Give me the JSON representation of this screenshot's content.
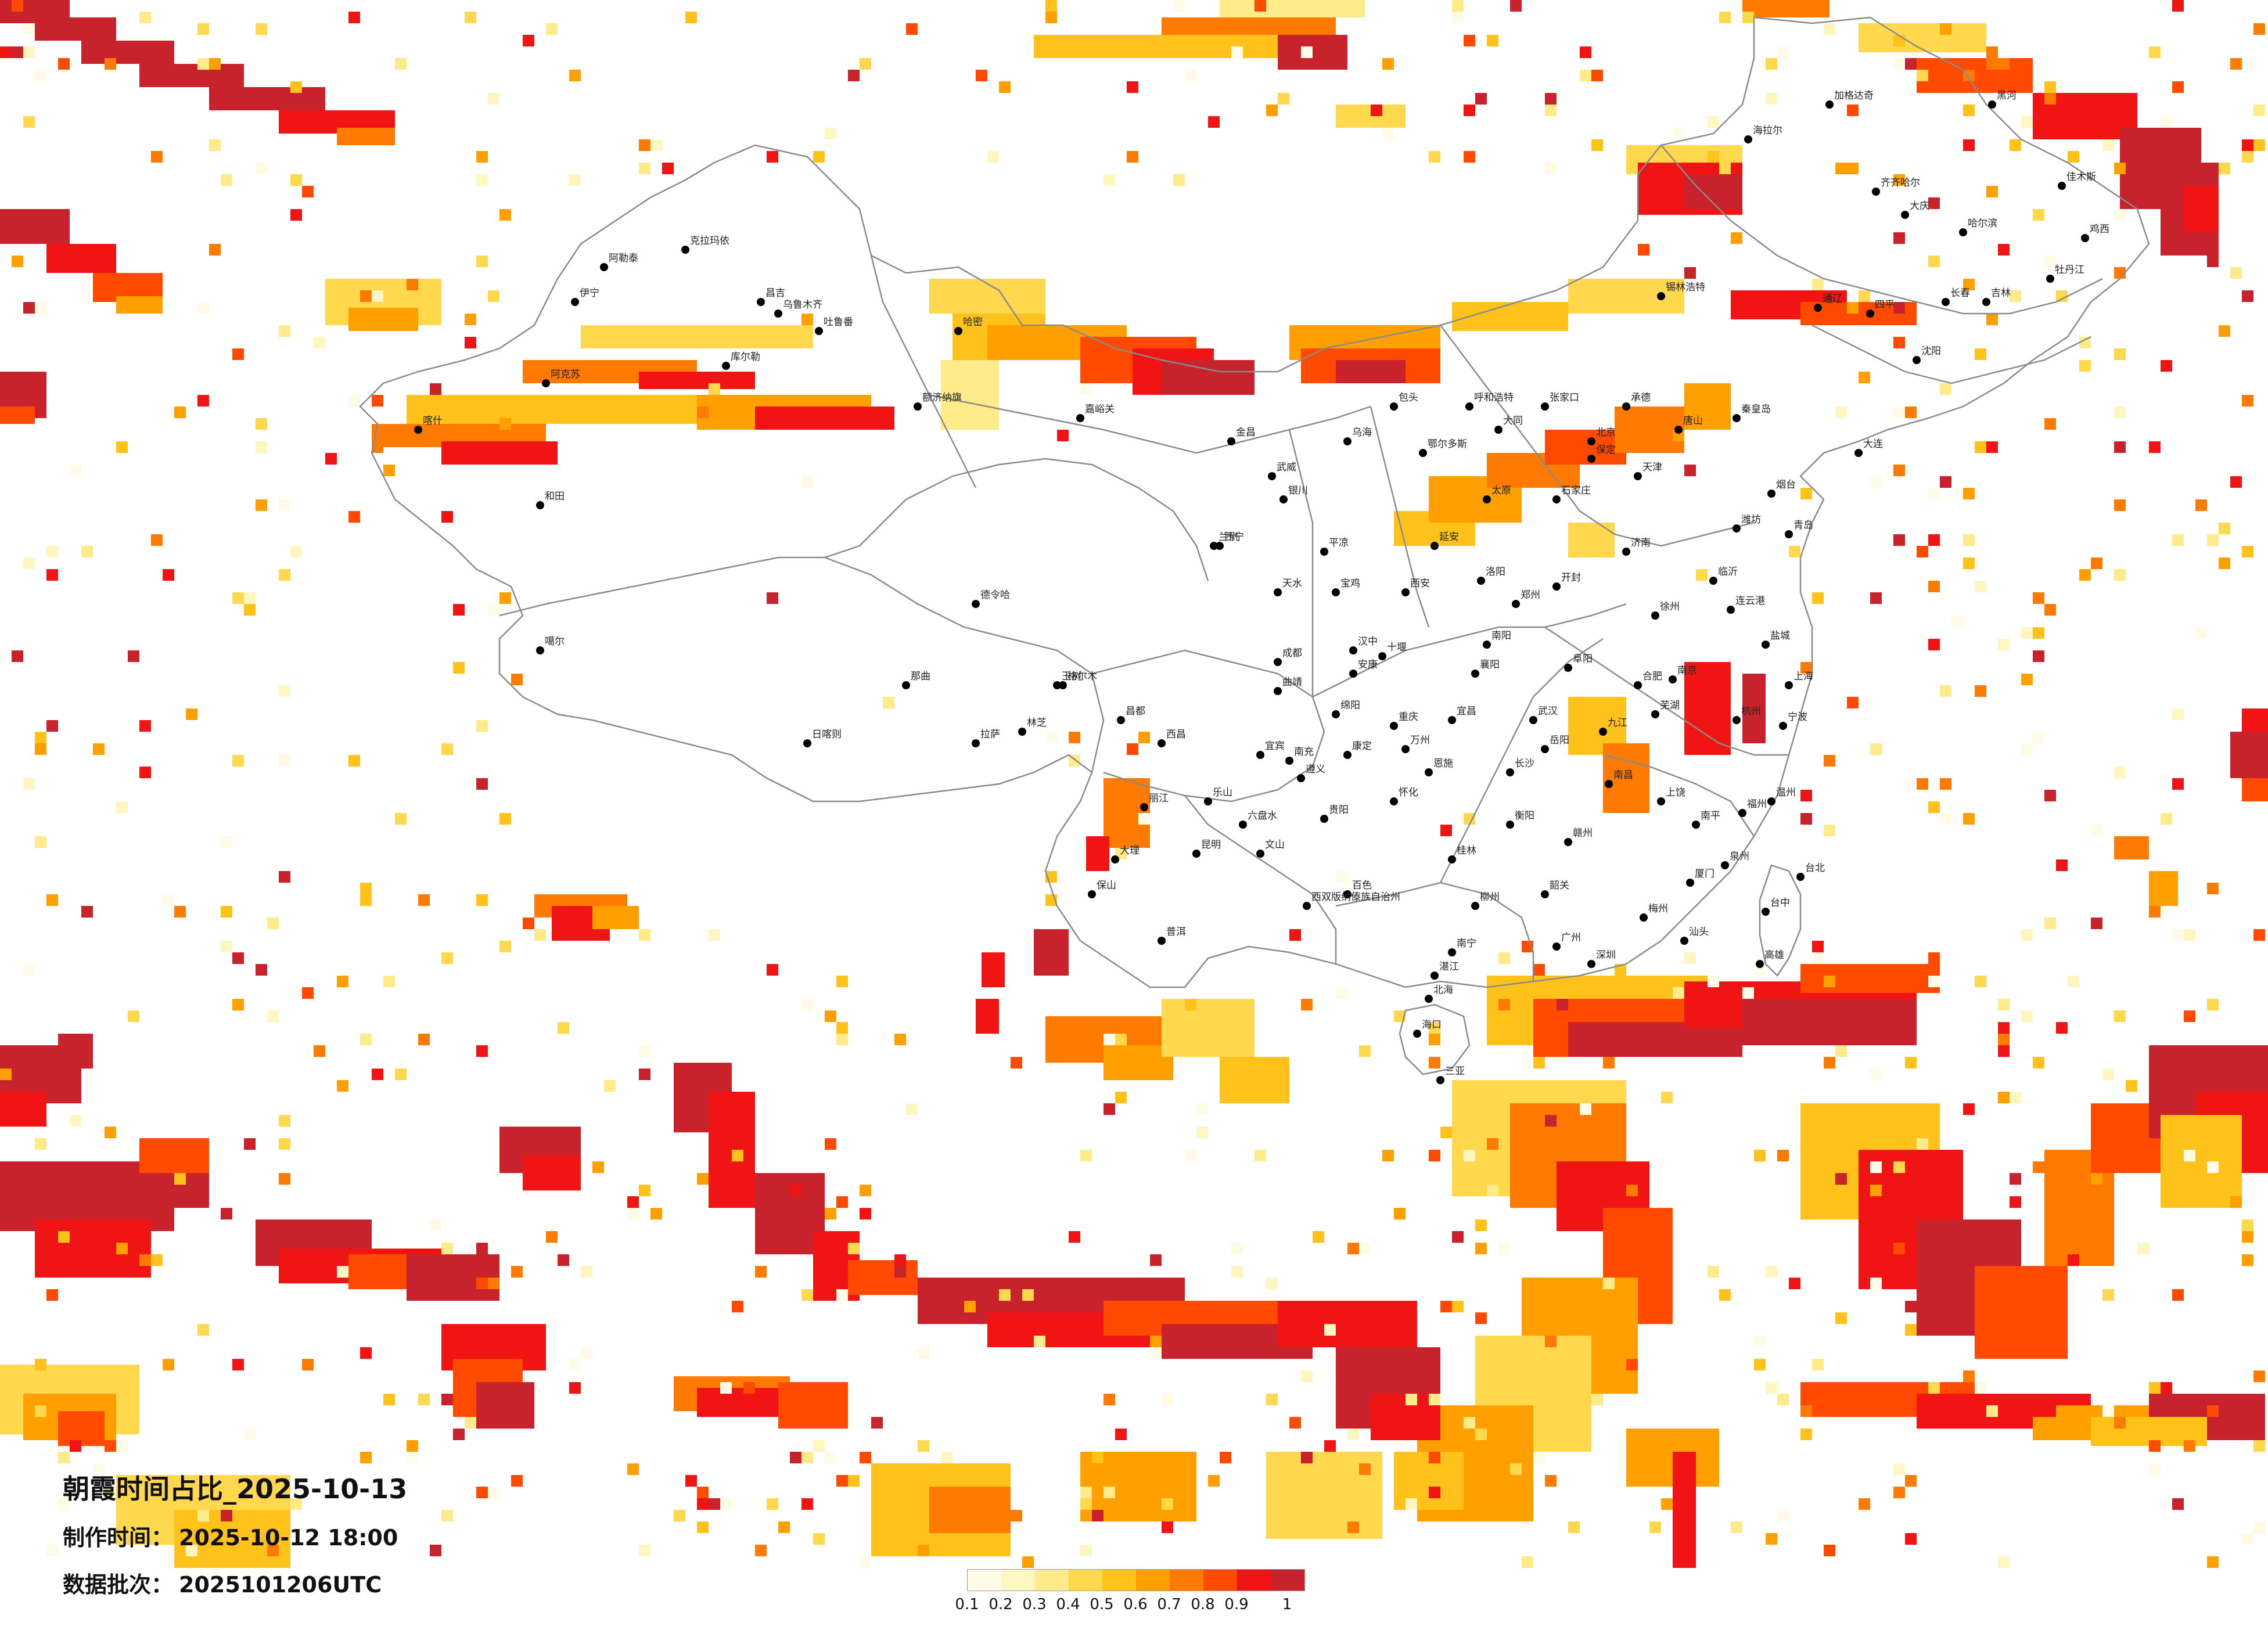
{
  "title": "朝霞时间占比_2025-10-13",
  "made_time": {
    "label": "制作时间：",
    "value": "2025-10-12 18:00"
  },
  "batch": {
    "label": "数据批次：",
    "value": "2025101206UTC"
  },
  "legend": {
    "ticks": [
      "0.1",
      "0.2",
      "0.3",
      "0.4",
      "0.5",
      "0.6",
      "0.7",
      "0.8",
      "0.9",
      "1"
    ],
    "colors": [
      "#fffbe6",
      "#fff6c2",
      "#ffeb8a",
      "#ffd84d",
      "#ffc21a",
      "#ff9f00",
      "#ff7a00",
      "#ff4a00",
      "#f01414",
      "#c8232c"
    ]
  },
  "cities": [
    {
      "name": "克拉玛依"
    },
    {
      "name": "阿勒泰"
    },
    {
      "name": "伊宁"
    },
    {
      "name": "昌吉"
    },
    {
      "name": "乌鲁木齐"
    },
    {
      "name": "吐鲁番"
    },
    {
      "name": "哈密"
    },
    {
      "name": "库尔勒"
    },
    {
      "name": "阿克苏"
    },
    {
      "name": "喀什"
    },
    {
      "name": "和田"
    },
    {
      "name": "额济纳旗"
    },
    {
      "name": "嘉峪关"
    },
    {
      "name": "金昌"
    },
    {
      "name": "武威"
    },
    {
      "name": "西宁"
    },
    {
      "name": "格尔木"
    },
    {
      "name": "德令哈"
    },
    {
      "name": "玉树"
    },
    {
      "name": "那曲"
    },
    {
      "name": "拉萨"
    },
    {
      "name": "日喀则"
    },
    {
      "name": "林芝"
    },
    {
      "name": "昌都"
    },
    {
      "name": "噶尔"
    },
    {
      "name": "海拉尔"
    },
    {
      "name": "加格达奇"
    },
    {
      "name": "黑河"
    },
    {
      "name": "齐齐哈尔"
    },
    {
      "name": "大庆"
    },
    {
      "name": "哈尔滨"
    },
    {
      "name": "佳木斯"
    },
    {
      "name": "鸡西"
    },
    {
      "name": "牡丹江"
    },
    {
      "name": "长春"
    },
    {
      "name": "吉林"
    },
    {
      "name": "四平"
    },
    {
      "name": "通辽"
    },
    {
      "name": "沈阳"
    },
    {
      "name": "大连"
    },
    {
      "name": "锡林浩特"
    },
    {
      "name": "呼和浩特"
    },
    {
      "name": "包头"
    },
    {
      "name": "鄂尔多斯"
    },
    {
      "name": "乌海"
    },
    {
      "name": "银川"
    },
    {
      "name": "兰州"
    },
    {
      "name": "天水"
    },
    {
      "name": "平凉"
    },
    {
      "name": "张家口"
    },
    {
      "name": "北京"
    },
    {
      "name": "天津"
    },
    {
      "name": "承德"
    },
    {
      "name": "唐山"
    },
    {
      "name": "秦皇岛"
    },
    {
      "name": "石家庄"
    },
    {
      "name": "保定"
    },
    {
      "name": "太原"
    },
    {
      "name": "大同"
    },
    {
      "name": "济南"
    },
    {
      "name": "青岛"
    },
    {
      "name": "烟台"
    },
    {
      "name": "潍坊"
    },
    {
      "name": "临沂"
    },
    {
      "name": "郑州"
    },
    {
      "name": "洛阳"
    },
    {
      "name": "开封"
    },
    {
      "name": "南阳"
    },
    {
      "name": "西安"
    },
    {
      "name": "宝鸡"
    },
    {
      "name": "延安"
    },
    {
      "name": "汉中"
    },
    {
      "name": "安康"
    },
    {
      "name": "徐州"
    },
    {
      "name": "南京"
    },
    {
      "name": "连云港"
    },
    {
      "name": "盐城"
    },
    {
      "name": "上海"
    },
    {
      "name": "杭州"
    },
    {
      "name": "宁波"
    },
    {
      "name": "温州"
    },
    {
      "name": "合肥"
    },
    {
      "name": "芜湖"
    },
    {
      "name": "阜阳"
    },
    {
      "name": "武汉"
    },
    {
      "name": "宜昌"
    },
    {
      "name": "襄阳"
    },
    {
      "name": "十堰"
    },
    {
      "name": "长沙"
    },
    {
      "name": "岳阳"
    },
    {
      "name": "衡阳"
    },
    {
      "name": "怀化"
    },
    {
      "name": "南昌"
    },
    {
      "name": "九江"
    },
    {
      "name": "赣州"
    },
    {
      "name": "上饶"
    },
    {
      "name": "福州"
    },
    {
      "name": "厦门"
    },
    {
      "name": "泉州"
    },
    {
      "name": "南平"
    },
    {
      "name": "台北"
    },
    {
      "name": "台中"
    },
    {
      "name": "高雄"
    },
    {
      "name": "广州"
    },
    {
      "name": "深圳"
    },
    {
      "name": "汕头"
    },
    {
      "name": "湛江"
    },
    {
      "name": "梅州"
    },
    {
      "name": "韶关"
    },
    {
      "name": "南宁"
    },
    {
      "name": "桂林"
    },
    {
      "name": "柳州"
    },
    {
      "name": "北海"
    },
    {
      "name": "百色"
    },
    {
      "name": "海口"
    },
    {
      "name": "三亚"
    },
    {
      "name": "贵阳"
    },
    {
      "name": "遵义"
    },
    {
      "name": "六盘水"
    },
    {
      "name": "昆明"
    },
    {
      "name": "大理"
    },
    {
      "name": "丽江"
    },
    {
      "name": "保山"
    },
    {
      "name": "普洱"
    },
    {
      "name": "西双版纳傣族自治州"
    },
    {
      "name": "文山"
    },
    {
      "name": "曲靖"
    },
    {
      "name": "成都"
    },
    {
      "name": "绵阳"
    },
    {
      "name": "南充"
    },
    {
      "name": "宜宾"
    },
    {
      "name": "乐山"
    },
    {
      "name": "西昌"
    },
    {
      "name": "康定"
    },
    {
      "name": "重庆"
    },
    {
      "name": "万州"
    },
    {
      "name": "恩施"
    },
    {
      "name": "张家界"
    }
  ]
}
